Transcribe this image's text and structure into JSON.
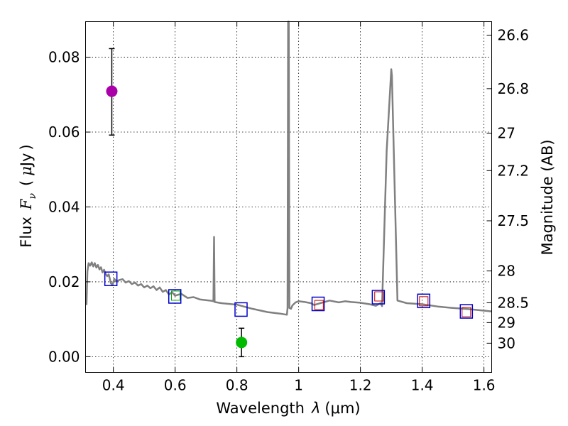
{
  "chart_data": {
    "type": "scatter",
    "xlabel_prefix": "Wavelength",
    "xlabel_symbol": "λ",
    "xlabel_unit": "(μm)",
    "ylabel_prefix": "Flux",
    "ylabel_symbol": "F",
    "ylabel_sub": "ν",
    "ylabel_unit_open": "(",
    "ylabel_unit_mu": "μ",
    "ylabel_unit_jy": "Jy",
    "ylabel_unit_close": ")",
    "y2label": "Magnitude (AB)",
    "xlim": [
      0.31,
      1.625
    ],
    "ylim": [
      -0.0042,
      0.0895
    ],
    "grid": true,
    "x_ticks": [
      {
        "value": 0.4,
        "label": "0.4"
      },
      {
        "value": 0.6,
        "label": "0.6"
      },
      {
        "value": 0.8,
        "label": "0.8"
      },
      {
        "value": 1.0,
        "label": "1"
      },
      {
        "value": 1.2,
        "label": "1.2"
      },
      {
        "value": 1.4,
        "label": "1.4"
      },
      {
        "value": 1.6,
        "label": "1.6"
      }
    ],
    "y_ticks": [
      {
        "value": 0.0,
        "label": "0.00"
      },
      {
        "value": 0.02,
        "label": "0.02"
      },
      {
        "value": 0.04,
        "label": "0.04"
      },
      {
        "value": 0.06,
        "label": "0.06"
      },
      {
        "value": 0.08,
        "label": "0.08"
      }
    ],
    "mag_ticks": [
      {
        "flux": 0.0859,
        "label": "26.6"
      },
      {
        "flux": 0.0716,
        "label": "26.8"
      },
      {
        "flux": 0.0597,
        "label": "27"
      },
      {
        "flux": 0.0497,
        "label": "27.2"
      },
      {
        "flux": 0.0363,
        "label": "27.5"
      },
      {
        "flux": 0.0229,
        "label": "28"
      },
      {
        "flux": 0.0144,
        "label": "28.5"
      },
      {
        "flux": 0.0091,
        "label": "29"
      },
      {
        "flux": 0.0036,
        "label": "30"
      }
    ],
    "model_sed": {
      "name": "model spectrum",
      "color": "#808080",
      "points": [
        [
          0.313,
          0.0138
        ],
        [
          0.316,
          0.0228
        ],
        [
          0.32,
          0.025
        ],
        [
          0.325,
          0.0243
        ],
        [
          0.33,
          0.0252
        ],
        [
          0.335,
          0.0241
        ],
        [
          0.34,
          0.025
        ],
        [
          0.345,
          0.0238
        ],
        [
          0.35,
          0.0245
        ],
        [
          0.355,
          0.0233
        ],
        [
          0.36,
          0.0239
        ],
        [
          0.365,
          0.0225
        ],
        [
          0.37,
          0.0232
        ],
        [
          0.375,
          0.0221
        ],
        [
          0.38,
          0.0215
        ],
        [
          0.385,
          0.022
        ],
        [
          0.388,
          0.021
        ],
        [
          0.392,
          0.0196
        ],
        [
          0.397,
          0.0191
        ],
        [
          0.403,
          0.0208
        ],
        [
          0.41,
          0.0201
        ],
        [
          0.42,
          0.0205
        ],
        [
          0.43,
          0.0207
        ],
        [
          0.44,
          0.0198
        ],
        [
          0.45,
          0.0202
        ],
        [
          0.46,
          0.0194
        ],
        [
          0.47,
          0.0198
        ],
        [
          0.48,
          0.019
        ],
        [
          0.49,
          0.0194
        ],
        [
          0.5,
          0.0185
        ],
        [
          0.51,
          0.019
        ],
        [
          0.52,
          0.0183
        ],
        [
          0.53,
          0.0188
        ],
        [
          0.54,
          0.0178
        ],
        [
          0.55,
          0.0185
        ],
        [
          0.56,
          0.0173
        ],
        [
          0.57,
          0.0178
        ],
        [
          0.58,
          0.0166
        ],
        [
          0.59,
          0.0172
        ],
        [
          0.6,
          0.0163
        ],
        [
          0.62,
          0.0168
        ],
        [
          0.64,
          0.0157
        ],
        [
          0.66,
          0.0159
        ],
        [
          0.68,
          0.0153
        ],
        [
          0.7,
          0.0151
        ],
        [
          0.72,
          0.0149
        ],
        [
          0.724,
          0.0148
        ],
        [
          0.726,
          0.032
        ],
        [
          0.728,
          0.0146
        ],
        [
          0.75,
          0.0143
        ],
        [
          0.8,
          0.0139
        ],
        [
          0.85,
          0.0128
        ],
        [
          0.9,
          0.0119
        ],
        [
          0.94,
          0.0115
        ],
        [
          0.962,
          0.0112
        ],
        [
          0.964,
          0.013
        ],
        [
          0.966,
          0.09
        ],
        [
          0.968,
          0.09
        ],
        [
          0.97,
          0.013
        ],
        [
          0.975,
          0.0128
        ],
        [
          0.98,
          0.0137
        ],
        [
          0.99,
          0.0145
        ],
        [
          1.0,
          0.0148
        ],
        [
          1.02,
          0.0146
        ],
        [
          1.04,
          0.0143
        ],
        [
          1.05,
          0.0138
        ],
        [
          1.07,
          0.0143
        ],
        [
          1.1,
          0.015
        ],
        [
          1.13,
          0.0145
        ],
        [
          1.15,
          0.0148
        ],
        [
          1.17,
          0.0146
        ],
        [
          1.2,
          0.0144
        ],
        [
          1.23,
          0.014
        ],
        [
          1.25,
          0.0136
        ],
        [
          1.265,
          0.0143
        ],
        [
          1.27,
          0.0135
        ],
        [
          1.285,
          0.055
        ],
        [
          1.3,
          0.0768
        ],
        [
          1.302,
          0.075
        ],
        [
          1.32,
          0.015
        ],
        [
          1.35,
          0.0143
        ],
        [
          1.4,
          0.014
        ],
        [
          1.45,
          0.0134
        ],
        [
          1.5,
          0.013
        ],
        [
          1.55,
          0.0127
        ],
        [
          1.6,
          0.0123
        ],
        [
          1.625,
          0.0121
        ]
      ]
    },
    "photometry_points": [
      {
        "name": "point-1",
        "x": 0.395,
        "y": 0.0709,
        "err_low": 0.0592,
        "err_high": 0.0823,
        "color": "#aa00aa"
      },
      {
        "name": "point-2",
        "x": 0.815,
        "y": 0.0038,
        "err_low": 0.0,
        "err_high": 0.0076,
        "color": "#00bb00"
      }
    ],
    "model_boxes": [
      {
        "x": 0.392,
        "y": 0.0208
      },
      {
        "x": 0.599,
        "y": 0.0161
      },
      {
        "x": 0.8135,
        "y": 0.0126
      },
      {
        "x": 1.063,
        "y": 0.0141
      },
      {
        "x": 1.258,
        "y": 0.0159
      },
      {
        "x": 1.405,
        "y": 0.0149
      },
      {
        "x": 1.543,
        "y": 0.0121
      }
    ],
    "inner_squares": [
      {
        "x": 0.602,
        "y": 0.0163,
        "color": "#00aa00"
      },
      {
        "x": 1.066,
        "y": 0.0138,
        "color": "#cc0000"
      },
      {
        "x": 1.26,
        "y": 0.0161,
        "color": "#cc0000"
      },
      {
        "x": 1.405,
        "y": 0.0148,
        "color": "#cc0000"
      },
      {
        "x": 1.543,
        "y": 0.0119,
        "color": "#cc0000"
      }
    ],
    "box_color": "#0000cc"
  }
}
